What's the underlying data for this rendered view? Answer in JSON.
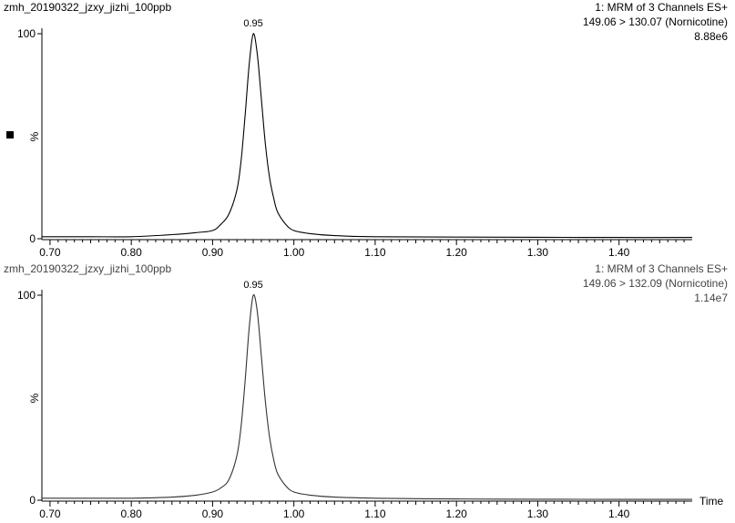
{
  "panels": [
    {
      "sample": "zmh_20190322_jzxy_jizhi_100ppb",
      "header_line1": "1: MRM of 3 Channels ES+",
      "header_line2": "149.06 > 130.07 (Nornicotine)",
      "header_line3": "8.88e6",
      "peak_label": "0.95",
      "line_color": "#000000"
    },
    {
      "sample": "zmh_20190322_jzxy_jizhi_100ppb",
      "header_line1": "1: MRM of 3 Channels ES+",
      "header_line2": "149.06 > 132.09 (Nornicotine)",
      "header_line3": "1.14e7",
      "peak_label": "0.95",
      "line_color": "#333333"
    }
  ],
  "chart_data": [
    {
      "type": "line",
      "series": [
        {
          "x": [
            0.69,
            0.75,
            0.8,
            0.85,
            0.88,
            0.9,
            0.91,
            0.92,
            0.93,
            0.935,
            0.94,
            0.945,
            0.95,
            0.955,
            0.96,
            0.965,
            0.97,
            0.975,
            0.98,
            0.99,
            1.0,
            1.02,
            1.05,
            1.1,
            1.2,
            1.3,
            1.4,
            1.49
          ],
          "y": [
            1,
            1,
            1,
            2,
            3,
            4,
            7,
            12,
            24,
            38,
            60,
            85,
            100,
            90,
            68,
            46,
            30,
            20,
            13,
            7,
            4,
            2.5,
            1.5,
            1,
            0.8,
            0.7,
            0.6,
            0.6
          ]
        }
      ],
      "ylabel": "%",
      "xlim": [
        0.69,
        1.49
      ],
      "ylim": [
        0,
        100
      ],
      "yticks": [
        0,
        100
      ],
      "xticks": [
        "0.70",
        "0.80",
        "0.90",
        "1.00",
        "1.10",
        "1.20",
        "1.30",
        "1.40"
      ],
      "annotations": [
        {
          "x": 0.95,
          "text": "0.95"
        }
      ]
    },
    {
      "type": "line",
      "series": [
        {
          "x": [
            0.69,
            0.75,
            0.8,
            0.85,
            0.88,
            0.9,
            0.91,
            0.92,
            0.93,
            0.935,
            0.94,
            0.945,
            0.95,
            0.955,
            0.96,
            0.965,
            0.97,
            0.975,
            0.98,
            0.99,
            1.0,
            1.02,
            1.05,
            1.1,
            1.2,
            1.3,
            1.4,
            1.49
          ],
          "y": [
            1,
            1,
            1,
            1.5,
            2.5,
            4,
            6,
            10,
            22,
            36,
            58,
            84,
            100,
            92,
            70,
            48,
            31,
            20,
            13,
            7,
            4,
            2.5,
            1.5,
            1,
            0.6,
            0.5,
            0.4,
            0.4
          ]
        }
      ],
      "xlabel": "Time",
      "ylabel": "%",
      "xlim": [
        0.69,
        1.49
      ],
      "ylim": [
        0,
        100
      ],
      "yticks": [
        0,
        100
      ],
      "xticks": [
        "0.70",
        "0.80",
        "0.90",
        "1.00",
        "1.10",
        "1.20",
        "1.30",
        "1.40"
      ],
      "annotations": [
        {
          "x": 0.95,
          "text": "0.95"
        }
      ]
    }
  ]
}
